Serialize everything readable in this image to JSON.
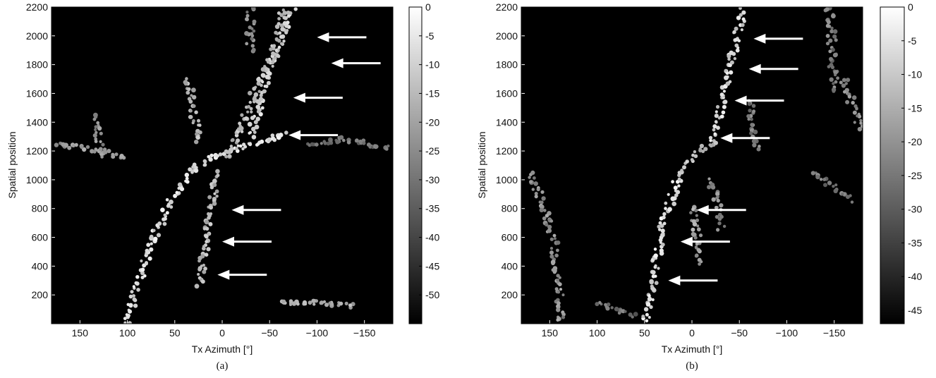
{
  "chart_data": [
    {
      "type": "heatmap",
      "panel_label": "(a)",
      "xlabel": "Tx Azimuth [°]",
      "ylabel": "Spatial position",
      "xlim": [
        180,
        -180
      ],
      "ylim": [
        0,
        2200
      ],
      "x_reversed": true,
      "xticks": [
        150,
        100,
        50,
        0,
        -50,
        -100,
        -150
      ],
      "xtick_labels": [
        "150",
        "100",
        "50",
        "0",
        "−50",
        "−100",
        "−150"
      ],
      "yticks": [
        200,
        400,
        600,
        800,
        1000,
        1200,
        1400,
        1600,
        1800,
        2000,
        2200
      ],
      "ytick_labels": [
        "200",
        "400",
        "600",
        "800",
        "1000",
        "1200",
        "1400",
        "1600",
        "1800",
        "2000",
        "2200"
      ],
      "colorbar": {
        "min": -55,
        "max": 0,
        "ticks": [
          0,
          -5,
          -10,
          -15,
          -20,
          -25,
          -30,
          -35,
          -40,
          -45,
          -50
        ],
        "tick_labels": [
          "0",
          "-5",
          "-10",
          "-15",
          "-20",
          "-25",
          "-30",
          "-35",
          "-40",
          "-45",
          "-50"
        ]
      },
      "dominant_paths": [
        {
          "points": [
            [
              100,
              0
            ],
            [
              90,
              250
            ],
            [
              75,
              550
            ],
            [
              55,
              850
            ],
            [
              35,
              1050
            ],
            [
              5,
              1180
            ],
            [
              -40,
              1260
            ],
            [
              -70,
              1320
            ]
          ],
          "level": -8
        },
        {
          "points": [
            [
              -30,
              1300
            ],
            [
              -38,
              1500
            ],
            [
              -48,
              1750
            ],
            [
              -60,
              1950
            ],
            [
              -75,
              2200
            ]
          ],
          "level": -10
        },
        {
          "points": [
            [
              -5,
              1150
            ],
            [
              -25,
              1450
            ],
            [
              -40,
              1700
            ],
            [
              -55,
              1900
            ],
            [
              -65,
              2200
            ]
          ],
          "level": -14
        },
        {
          "points": [
            [
              35,
              1700
            ],
            [
              30,
              1450
            ],
            [
              25,
              1250
            ]
          ],
          "level": -16
        },
        {
          "points": [
            [
              5,
              1050
            ],
            [
              10,
              850
            ],
            [
              15,
              650
            ],
            [
              20,
              450
            ],
            [
              25,
              250
            ]
          ],
          "level": -15
        },
        {
          "points": [
            [
              175,
              1250
            ],
            [
              130,
              1200
            ],
            [
              100,
              1150
            ]
          ],
          "level": -22
        },
        {
          "points": [
            [
              135,
              1450
            ],
            [
              130,
              1300
            ],
            [
              125,
              1150
            ]
          ],
          "level": -24
        },
        {
          "points": [
            [
              -60,
              140
            ],
            [
              -100,
              150
            ],
            [
              -140,
              120
            ]
          ],
          "level": -18
        },
        {
          "points": [
            [
              -90,
              1250
            ],
            [
              -130,
              1280
            ],
            [
              -175,
              1220
            ]
          ],
          "level": -30
        },
        {
          "points": [
            [
              -30,
              1900
            ],
            [
              -30,
              2100
            ],
            [
              -30,
              2200
            ]
          ],
          "level": -25
        }
      ],
      "arrow_tips": [
        [
          -100,
          1990
        ],
        [
          -115,
          1810
        ],
        [
          -75,
          1570
        ],
        [
          -70,
          1310
        ],
        [
          -10,
          790
        ],
        [
          0,
          570
        ],
        [
          5,
          340
        ]
      ]
    },
    {
      "type": "heatmap",
      "panel_label": "(b)",
      "xlabel": "Tx Azimuth [°]",
      "ylabel": "Spatial position",
      "xlim": [
        180,
        -180
      ],
      "ylim": [
        0,
        2200
      ],
      "x_reversed": true,
      "xticks": [
        150,
        100,
        50,
        0,
        -50,
        -100,
        -150
      ],
      "xtick_labels": [
        "150",
        "100",
        "50",
        "0",
        "−50",
        "−100",
        "−150"
      ],
      "yticks": [
        200,
        400,
        600,
        800,
        1000,
        1200,
        1400,
        1600,
        1800,
        2000,
        2200
      ],
      "ytick_labels": [
        "200",
        "400",
        "600",
        "800",
        "1000",
        "1200",
        "1400",
        "1600",
        "1800",
        "2000",
        "2200"
      ],
      "colorbar": {
        "min": -47,
        "max": 0,
        "ticks": [
          0,
          -5,
          -10,
          -15,
          -20,
          -25,
          -30,
          -35,
          -40,
          -45
        ],
        "tick_labels": [
          "0",
          "-5",
          "-10",
          "-15",
          "-20",
          "-25",
          "-30",
          "-35",
          "-40",
          "-45"
        ]
      },
      "dominant_paths": [
        {
          "points": [
            [
              50,
              0
            ],
            [
              40,
              350
            ],
            [
              30,
              700
            ],
            [
              15,
              1000
            ],
            [
              0,
              1150
            ]
          ],
          "level": -7
        },
        {
          "points": [
            [
              -20,
              1250
            ],
            [
              -30,
              1500
            ],
            [
              -40,
              1800
            ],
            [
              -50,
              2050
            ],
            [
              -55,
              2200
            ]
          ],
          "level": -8
        },
        {
          "points": [
            [
              0,
              1150
            ],
            [
              -12,
              1220
            ],
            [
              -25,
              1250
            ]
          ],
          "level": -12
        },
        {
          "points": [
            [
              0,
              800
            ],
            [
              -5,
              600
            ],
            [
              -8,
              400
            ]
          ],
          "level": -18
        },
        {
          "points": [
            [
              -20,
              1000
            ],
            [
              -28,
              800
            ],
            [
              -32,
              650
            ]
          ],
          "level": -22
        },
        {
          "points": [
            [
              170,
              1050
            ],
            [
              155,
              800
            ],
            [
              145,
              550
            ],
            [
              140,
              250
            ],
            [
              138,
              0
            ]
          ],
          "level": -20
        },
        {
          "points": [
            [
              100,
              150
            ],
            [
              80,
              100
            ],
            [
              60,
              50
            ]
          ],
          "level": -26
        },
        {
          "points": [
            [
              -145,
              2200
            ],
            [
              -148,
              1900
            ],
            [
              -150,
              1600
            ]
          ],
          "level": -24
        },
        {
          "points": [
            [
              -160,
              1700
            ],
            [
              -170,
              1500
            ],
            [
              -178,
              1350
            ]
          ],
          "level": -22
        },
        {
          "points": [
            [
              -130,
              1050
            ],
            [
              -150,
              950
            ],
            [
              -170,
              850
            ]
          ],
          "level": -24
        },
        {
          "points": [
            [
              -60,
              1550
            ],
            [
              -65,
              1350
            ],
            [
              -70,
              1200
            ]
          ],
          "level": -24
        }
      ],
      "arrow_tips": [
        [
          -65,
          1980
        ],
        [
          -60,
          1770
        ],
        [
          -45,
          1550
        ],
        [
          -30,
          1290
        ],
        [
          -5,
          790
        ],
        [
          12,
          570
        ],
        [
          25,
          300
        ]
      ]
    }
  ]
}
